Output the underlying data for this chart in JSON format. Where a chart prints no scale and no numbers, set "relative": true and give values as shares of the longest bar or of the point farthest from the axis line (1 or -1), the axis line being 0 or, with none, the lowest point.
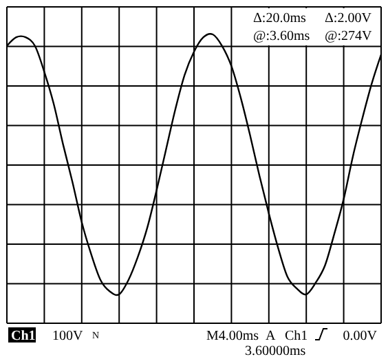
{
  "chart_data": {
    "type": "line",
    "relative": true,
    "grid": true,
    "line_style": "solid",
    "categories": [
      null,
      null,
      null,
      null,
      null,
      null,
      null,
      null,
      null,
      null,
      null,
      null,
      null,
      null,
      null,
      null,
      null,
      null,
      null,
      null,
      null,
      null,
      null,
      null,
      null,
      null,
      null,
      null,
      null,
      null,
      null,
      null,
      null,
      null,
      null,
      null,
      null,
      null,
      null,
      null,
      null
    ],
    "series": [
      {
        "color": "#000000",
        "values": [
          0.96,
          0.99,
          0.99,
          0.96,
          0.87,
          0.76,
          0.62,
          0.49,
          0.35,
          0.24,
          0.15,
          0.11,
          0.1,
          0.15,
          0.23,
          0.33,
          0.46,
          0.6,
          0.74,
          0.86,
          0.94,
          0.99,
          1.0,
          0.96,
          0.89,
          0.78,
          0.65,
          0.51,
          0.38,
          0.26,
          0.16,
          0.12,
          0.1,
          0.14,
          0.2,
          0.31,
          0.43,
          0.58,
          0.71,
          0.83,
          0.93
        ]
      }
    ],
    "annotations": [
      "Δ:20.0ms",
      "@:3.60ms",
      "Δ:2.00V",
      "@:274V",
      "Ch1",
      "100V",
      "N",
      "M4.00ms",
      "A",
      "Ch1",
      "0.00V",
      "3.60000ms"
    ]
  }
}
